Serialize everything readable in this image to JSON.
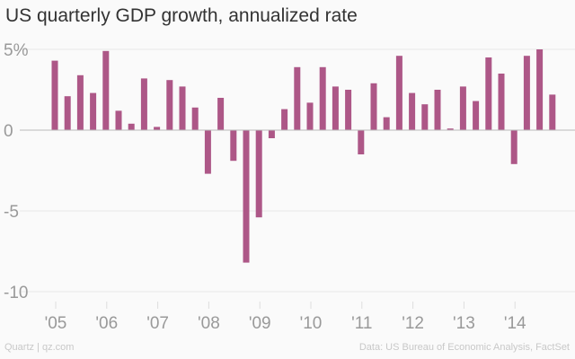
{
  "title": "US quarterly GDP growth, annualized rate",
  "footer": {
    "left": "Quartz | qz.com",
    "right": "Data: US Bureau of Economic Analysis, FactSet"
  },
  "colors": {
    "bar": "#ad5787",
    "grid": "#e8e8e8",
    "axis_text": "#999999"
  },
  "chart_data": {
    "type": "bar",
    "title": "US quarterly GDP growth, annualized rate",
    "xlabel": "",
    "ylabel": "",
    "ylim": [
      -10,
      5
    ],
    "yticks": [
      {
        "v": 5,
        "label": "5%"
      },
      {
        "v": 0,
        "label": "0"
      },
      {
        "v": -5,
        "label": "-5"
      },
      {
        "v": -10,
        "label": "-10"
      }
    ],
    "xticks": [
      "'05",
      "'06",
      "'07",
      "'08",
      "'09",
      "'10",
      "'11",
      "'12",
      "'13",
      "'14"
    ],
    "categories": [
      "2005Q1",
      "2005Q2",
      "2005Q3",
      "2005Q4",
      "2006Q1",
      "2006Q2",
      "2006Q3",
      "2006Q4",
      "2007Q1",
      "2007Q2",
      "2007Q3",
      "2007Q4",
      "2008Q1",
      "2008Q2",
      "2008Q3",
      "2008Q4",
      "2009Q1",
      "2009Q2",
      "2009Q3",
      "2009Q4",
      "2010Q1",
      "2010Q2",
      "2010Q3",
      "2010Q4",
      "2011Q1",
      "2011Q2",
      "2011Q3",
      "2011Q4",
      "2012Q1",
      "2012Q2",
      "2012Q3",
      "2012Q4",
      "2013Q1",
      "2013Q2",
      "2013Q3",
      "2013Q4",
      "2014Q1",
      "2014Q2",
      "2014Q3",
      "2014Q4"
    ],
    "values": [
      4.3,
      2.1,
      3.4,
      2.3,
      4.9,
      1.2,
      0.4,
      3.2,
      0.2,
      3.1,
      2.7,
      1.4,
      -2.7,
      2.0,
      -1.9,
      -8.2,
      -5.4,
      -0.5,
      1.3,
      3.9,
      1.7,
      3.9,
      2.7,
      2.5,
      -1.5,
      2.9,
      0.8,
      4.6,
      2.3,
      1.6,
      2.5,
      0.1,
      2.7,
      1.8,
      4.5,
      3.5,
      -2.1,
      4.6,
      5.0,
      2.2
    ],
    "grid": true
  }
}
